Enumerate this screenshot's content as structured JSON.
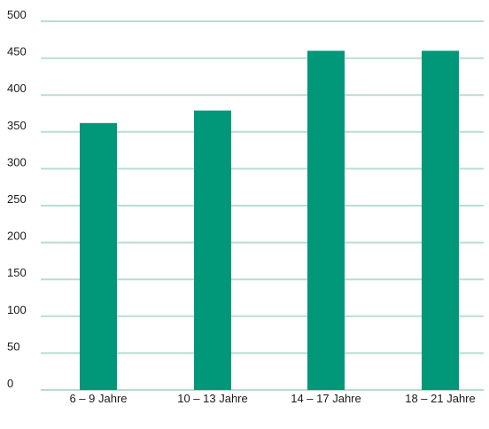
{
  "colors": {
    "bar": "#009878",
    "grid": "#b9ddd0"
  },
  "chart_data": {
    "type": "bar",
    "title": "",
    "xlabel": "",
    "ylabel": "",
    "categories": [
      "6 – 9 Jahre",
      "10 – 13 Jahre",
      "14 – 17 Jahre",
      "18 – 21 Jahre"
    ],
    "values": [
      362,
      379,
      460,
      460
    ],
    "ylim": [
      0,
      500
    ],
    "yticks": [
      0,
      50,
      100,
      150,
      200,
      250,
      300,
      350,
      400,
      450,
      500
    ],
    "grid": true,
    "legend": "none"
  }
}
